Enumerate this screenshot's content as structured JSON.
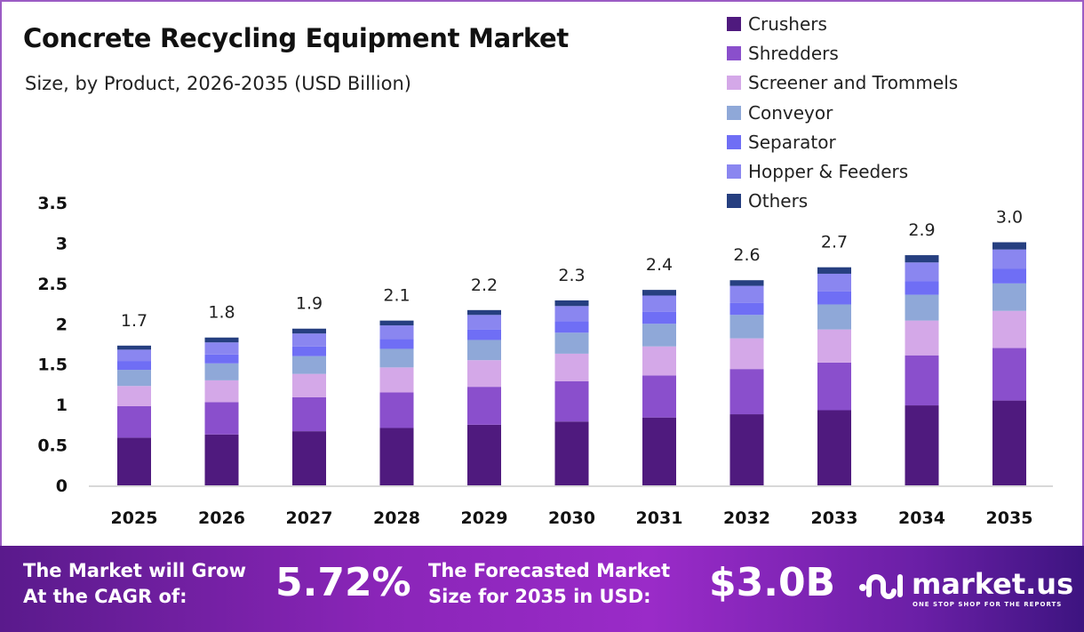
{
  "chart_data": {
    "type": "bar",
    "stacked": true,
    "title": "Concrete Recycling Equipment Market",
    "subtitle": "Size, by Product, 2026-2035 (USD Billion)",
    "categories": [
      "2025",
      "2026",
      "2027",
      "2028",
      "2029",
      "2030",
      "2031",
      "2032",
      "2033",
      "2034",
      "2035"
    ],
    "totals": [
      "1.7",
      "1.8",
      "1.9",
      "2.1",
      "2.2",
      "2.3",
      "2.4",
      "2.6",
      "2.7",
      "2.9",
      "3.0"
    ],
    "ylim": [
      0,
      3.5
    ],
    "yticks": [
      "0",
      "0.5",
      "1",
      "1.5",
      "2",
      "2.5",
      "3",
      "3.5"
    ],
    "legend_position": "top-right",
    "series": [
      {
        "name": "Crushers",
        "color": "#4f1a7e",
        "values": [
          0.59,
          0.63,
          0.67,
          0.71,
          0.75,
          0.79,
          0.84,
          0.88,
          0.93,
          0.99,
          1.05
        ]
      },
      {
        "name": "Shredders",
        "color": "#8a4fcc",
        "values": [
          0.39,
          0.4,
          0.42,
          0.44,
          0.47,
          0.5,
          0.52,
          0.56,
          0.59,
          0.62,
          0.65
        ]
      },
      {
        "name": "Screener and Trommels",
        "color": "#d4a8e8",
        "values": [
          0.25,
          0.27,
          0.29,
          0.31,
          0.33,
          0.34,
          0.36,
          0.38,
          0.41,
          0.43,
          0.46
        ]
      },
      {
        "name": "Conveyor",
        "color": "#8fa8d8",
        "values": [
          0.2,
          0.21,
          0.22,
          0.23,
          0.25,
          0.26,
          0.28,
          0.29,
          0.31,
          0.32,
          0.34
        ]
      },
      {
        "name": "Separator",
        "color": "#6f6ef5",
        "values": [
          0.11,
          0.11,
          0.12,
          0.12,
          0.13,
          0.14,
          0.15,
          0.15,
          0.16,
          0.17,
          0.18
        ]
      },
      {
        "name": "Hopper & Feeders",
        "color": "#8a86f0",
        "values": [
          0.14,
          0.15,
          0.16,
          0.17,
          0.18,
          0.19,
          0.2,
          0.21,
          0.22,
          0.23,
          0.24
        ]
      },
      {
        "name": "Others",
        "color": "#263f80",
        "values": [
          0.05,
          0.06,
          0.06,
          0.06,
          0.06,
          0.07,
          0.07,
          0.07,
          0.08,
          0.09,
          0.09
        ]
      }
    ]
  },
  "footer": {
    "cagr_label": [
      "The Market will Grow",
      "At the CAGR of:"
    ],
    "cagr_value": "5.72%",
    "size_label": [
      "The Forecasted Market",
      "Size for 2035 in USD:"
    ],
    "size_value": "$3.0B",
    "logo": "market.us",
    "tagline": "ONE STOP SHOP FOR THE REPORTS"
  }
}
